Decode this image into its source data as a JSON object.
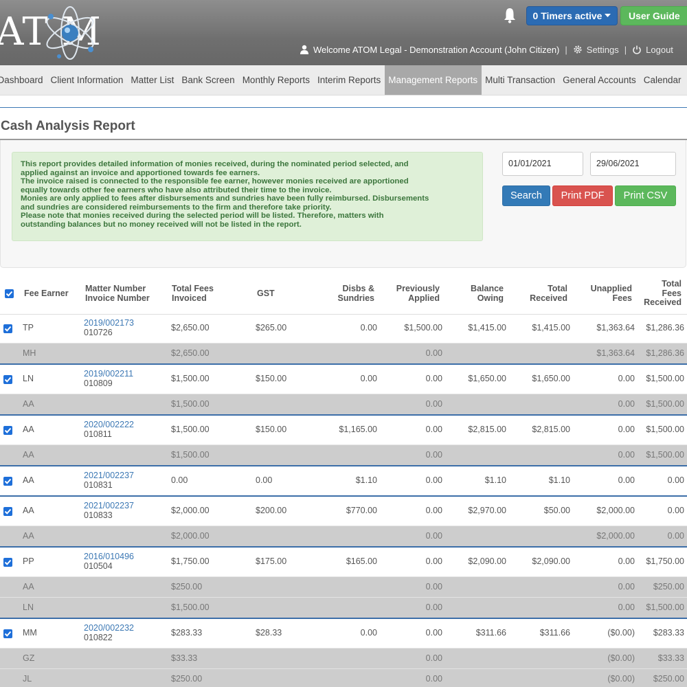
{
  "header": {
    "logo_text": "AT   M",
    "timers_label": "0 Timers active",
    "user_guide_label": "User Guide",
    "welcome": "Welcome ATOM Legal - Demonstration Account (John Citizen)",
    "settings_label": "Settings",
    "logout_label": "Logout",
    "colors": {
      "timers": "#2b6bb3",
      "guide": "#5cb85c"
    }
  },
  "nav": {
    "items": [
      "Dashboard",
      "Client Information",
      "Matter List",
      "Bank Screen",
      "Monthly Reports",
      "Interim Reports",
      "Management Reports",
      "Multi Transaction",
      "General Accounts",
      "Calendar"
    ],
    "active": "Management Reports"
  },
  "page": {
    "title": "Cash Analysis Report",
    "info_lines": [
      "This report provides detailed information of monies received, during the nominated period selected, and",
      "applied against an invoice and apportioned towards fee earners.",
      "The invoice raised is connected to the responsible fee earner, however monies received are apportioned",
      "equally towards other fee earners who have also attributed their time to the invoice.",
      "Monies are only applied to fees after disbursements and sundries have been fully reimbursed. Disbursements",
      "and sundries are considered reimbursements to the firm and therefore take priority.",
      "Please note that monies received during the selected period will be listed. Therefore, matters with",
      "outstanding balances but no money received will not be listed in the report."
    ],
    "date_from": "01/01/2021",
    "date_to": "29/06/2021",
    "search_label": "Search",
    "pdf_label": "Print PDF",
    "csv_label": "Print CSV"
  },
  "table": {
    "headers": {
      "fee_earner": "Fee Earner",
      "matter_1": "Matter Number",
      "matter_2": "Invoice Number",
      "fees_1": "Total Fees",
      "fees_2": "Invoiced",
      "gst": "GST",
      "disbs_1": "Disbs &",
      "disbs_2": "Sundries",
      "prev_1": "Previously",
      "prev_2": "Applied",
      "bal_1": "Balance",
      "bal_2": "Owing",
      "rec_1": "Total",
      "rec_2": "Received",
      "unap_1": "Unapplied",
      "unap_2": "Fees",
      "tfr_1": "Total",
      "tfr_2": "Fees",
      "tfr_3": "Received"
    },
    "rows": [
      {
        "type": "main",
        "group": false,
        "earner": "TP",
        "matter": "2019/002173",
        "invoice": "010726",
        "fees": "$2,650.00",
        "gst": "$265.00",
        "disbs": "0.00",
        "prev": "$1,500.00",
        "bal": "$1,415.00",
        "rec": "$1,415.00",
        "unap": "$1,363.64",
        "tfr": "$1,286.36"
      },
      {
        "type": "sub",
        "earner": "MH",
        "fees": "$2,650.00",
        "prev": "0.00",
        "unap": "$1,363.64",
        "tfr": "$1,286.36"
      },
      {
        "type": "main",
        "group": true,
        "earner": "LN",
        "matter": "2019/002211",
        "invoice": "010809",
        "fees": "$1,500.00",
        "gst": "$150.00",
        "disbs": "0.00",
        "prev": "0.00",
        "bal": "$1,650.00",
        "rec": "$1,650.00",
        "unap": "0.00",
        "tfr": "$1,500.00"
      },
      {
        "type": "sub",
        "earner": "AA",
        "fees": "$1,500.00",
        "prev": "0.00",
        "unap": "0.00",
        "tfr": "$1,500.00"
      },
      {
        "type": "main",
        "group": true,
        "earner": "AA",
        "matter": "2020/002222",
        "invoice": "010811",
        "fees": "$1,500.00",
        "gst": "$150.00",
        "disbs": "$1,165.00",
        "prev": "0.00",
        "bal": "$2,815.00",
        "rec": "$2,815.00",
        "unap": "0.00",
        "tfr": "$1,500.00"
      },
      {
        "type": "sub",
        "earner": "AA",
        "fees": "$1,500.00",
        "prev": "0.00",
        "unap": "0.00",
        "tfr": "$1,500.00"
      },
      {
        "type": "main",
        "group": true,
        "earner": "AA",
        "matter": "2021/002237",
        "invoice": "010831",
        "fees": "0.00",
        "gst": "0.00",
        "disbs": "$1.10",
        "prev": "0.00",
        "bal": "$1.10",
        "rec": "$1.10",
        "unap": "0.00",
        "tfr": "0.00"
      },
      {
        "type": "main",
        "group": true,
        "earner": "AA",
        "matter": "2021/002237",
        "invoice": "010833",
        "fees": "$2,000.00",
        "gst": "$200.00",
        "disbs": "$770.00",
        "prev": "0.00",
        "bal": "$2,970.00",
        "rec": "$50.00",
        "unap": "$2,000.00",
        "tfr": "0.00"
      },
      {
        "type": "sub",
        "earner": "AA",
        "fees": "$2,000.00",
        "prev": "0.00",
        "unap": "$2,000.00",
        "tfr": "0.00"
      },
      {
        "type": "main",
        "group": true,
        "earner": "PP",
        "matter": "2016/010496",
        "invoice": "010504",
        "fees": "$1,750.00",
        "gst": "$175.00",
        "disbs": "$165.00",
        "prev": "0.00",
        "bal": "$2,090.00",
        "rec": "$2,090.00",
        "unap": "0.00",
        "tfr": "$1,750.00"
      },
      {
        "type": "sub",
        "earner": "AA",
        "fees": "$250.00",
        "prev": "0.00",
        "unap": "0.00",
        "tfr": "$250.00"
      },
      {
        "type": "sub",
        "earner": "LN",
        "fees": "$1,500.00",
        "prev": "0.00",
        "unap": "0.00",
        "tfr": "$1,500.00"
      },
      {
        "type": "main",
        "group": true,
        "earner": "MM",
        "matter": "2020/002232",
        "invoice": "010822",
        "fees": "$283.33",
        "gst": "$28.33",
        "disbs": "0.00",
        "prev": "0.00",
        "bal": "$311.66",
        "rec": "$311.66",
        "unap": "($0.00)",
        "tfr": "$283.33"
      },
      {
        "type": "sub",
        "earner": "GZ",
        "fees": "$33.33",
        "prev": "0.00",
        "unap": "($0.00)",
        "tfr": "$33.33"
      },
      {
        "type": "sub",
        "earner": "JL",
        "fees": "$250.00",
        "prev": "0.00",
        "unap": "($0.00)",
        "tfr": "$250.00"
      }
    ]
  }
}
